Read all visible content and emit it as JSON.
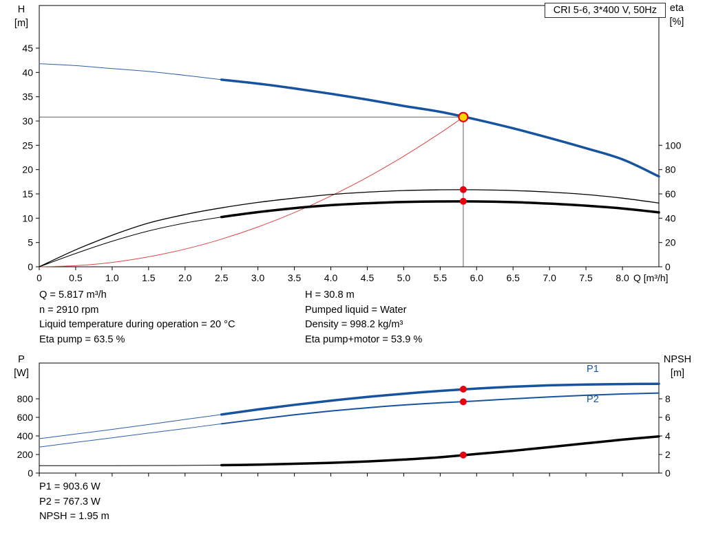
{
  "title_box": "CRI 5-6, 3*400 V, 50Hz",
  "info_top": {
    "left": [
      "Q = 5.817 m³/h",
      "n = 2910 rpm",
      "Liquid temperature during operation = 20 °C",
      "Eta pump = 63.5 %"
    ],
    "right": [
      "H = 30.8 m",
      "Pumped liquid = Water",
      "Density = 998.2 kg/m³",
      "Eta pump+motor = 53.9 %"
    ]
  },
  "info_bottom": [
    "P1 = 903.6 W",
    "P2 = 767.3 W",
    "NPSH = 1.95 m"
  ],
  "chart_data": [
    {
      "type": "line",
      "title": "CRI 5-6, 3*400 V, 50Hz",
      "x_axis": {
        "label": "Q [m³/h]",
        "min": 0,
        "max": 8.5,
        "show_labels": true,
        "ticks": [
          [
            0,
            "0"
          ],
          [
            0.5,
            "0.5"
          ],
          [
            1,
            "1.0"
          ],
          [
            1.5,
            "1.5"
          ],
          [
            2,
            "2.0"
          ],
          [
            2.5,
            "2.5"
          ],
          [
            3,
            "3.0"
          ],
          [
            3.5,
            "3.5"
          ],
          [
            4,
            "4.0"
          ],
          [
            4.5,
            "4.5"
          ],
          [
            5,
            "5.0"
          ],
          [
            5.5,
            "5.5"
          ],
          [
            6,
            "6.0"
          ],
          [
            6.5,
            "6.5"
          ],
          [
            7,
            "7.0"
          ],
          [
            7.5,
            "7.5"
          ],
          [
            8,
            "8.0"
          ]
        ]
      },
      "y_left": {
        "label": [
          "H",
          "[m]"
        ],
        "min": 0,
        "max": 53.77,
        "ticks": [
          [
            0,
            "0"
          ],
          [
            5,
            "5"
          ],
          [
            10,
            "10"
          ],
          [
            15,
            "15"
          ],
          [
            20,
            "20"
          ],
          [
            25,
            "25"
          ],
          [
            30,
            "30"
          ],
          [
            35,
            "35"
          ],
          [
            40,
            "40"
          ],
          [
            45,
            "45"
          ]
        ]
      },
      "y_right": {
        "label": [
          "eta",
          "[%]"
        ],
        "min": 0,
        "max": 215.1,
        "ticks": [
          [
            0,
            "0"
          ],
          [
            20,
            "20"
          ],
          [
            40,
            "40"
          ],
          [
            60,
            "60"
          ],
          [
            80,
            "80"
          ],
          [
            100,
            "100"
          ]
        ]
      },
      "series": [
        {
          "name": "head-curve-extension",
          "axis": "left",
          "color": "#2b5ea7",
          "width": 1,
          "points": [
            [
              0,
              41.8
            ],
            [
              0.5,
              41.4
            ],
            [
              1,
              40.8
            ],
            [
              1.5,
              40.2
            ],
            [
              2,
              39.4
            ],
            [
              2.5,
              38.5
            ]
          ]
        },
        {
          "name": "head-curve",
          "axis": "left",
          "color": "#17539e",
          "width": 3.5,
          "points": [
            [
              2.5,
              38.5
            ],
            [
              3,
              37.7
            ],
            [
              3.5,
              36.7
            ],
            [
              4,
              35.6
            ],
            [
              4.5,
              34.4
            ],
            [
              5,
              33.1
            ],
            [
              5.5,
              31.9
            ],
            [
              6,
              30.3
            ],
            [
              6.5,
              28.5
            ],
            [
              7,
              26.5
            ],
            [
              7.5,
              24.4
            ],
            [
              8,
              22.1
            ],
            [
              8.5,
              18.6
            ]
          ]
        },
        {
          "name": "system-curve",
          "axis": "left",
          "color": "#e04545",
          "width": 1,
          "points": [
            [
              0,
              0
            ],
            [
              0.5,
              0.23
            ],
            [
              1,
              0.91
            ],
            [
              1.5,
              2.05
            ],
            [
              2,
              3.64
            ],
            [
              2.5,
              5.69
            ],
            [
              3,
              8.19
            ],
            [
              3.5,
              11.15
            ],
            [
              4,
              14.56
            ],
            [
              4.5,
              18.43
            ],
            [
              5,
              22.76
            ],
            [
              5.5,
              27.53
            ],
            [
              5.817,
              30.8
            ]
          ]
        },
        {
          "name": "eta-pump-curve",
          "axis": "right",
          "color": "#000000",
          "width": 1.3,
          "points": [
            [
              0,
              0
            ],
            [
              0.5,
              14
            ],
            [
              1,
              26
            ],
            [
              1.5,
              36
            ],
            [
              2,
              43
            ],
            [
              2.5,
              48.5
            ],
            [
              3,
              53
            ],
            [
              3.5,
              56.5
            ],
            [
              4,
              59.5
            ],
            [
              4.5,
              61.5
            ],
            [
              5,
              62.8
            ],
            [
              5.5,
              63.4
            ],
            [
              6,
              63.4
            ],
            [
              6.5,
              62.8
            ],
            [
              7,
              61.5
            ],
            [
              7.5,
              59.5
            ],
            [
              8,
              56.5
            ],
            [
              8.5,
              52.5
            ]
          ]
        },
        {
          "name": "eta-pump-motor-extension",
          "axis": "right",
          "color": "#000000",
          "width": 1,
          "points": [
            [
              0,
              0
            ],
            [
              0.5,
              11
            ],
            [
              1,
              21
            ],
            [
              1.5,
              29.5
            ],
            [
              2,
              36
            ],
            [
              2.5,
              41
            ]
          ]
        },
        {
          "name": "eta-pump-motor-curve",
          "axis": "right",
          "color": "#000000",
          "width": 3.5,
          "points": [
            [
              2.5,
              41
            ],
            [
              3,
              45
            ],
            [
              3.5,
              48.3
            ],
            [
              4,
              50.7
            ],
            [
              4.5,
              52.3
            ],
            [
              5,
              53.4
            ],
            [
              5.5,
              53.8
            ],
            [
              6,
              53.8
            ],
            [
              6.5,
              53.2
            ],
            [
              7,
              52
            ],
            [
              7.5,
              50.3
            ],
            [
              8,
              48
            ],
            [
              8.5,
              44.8
            ]
          ]
        }
      ],
      "crosshair": {
        "q": 5.817,
        "h": 30.8,
        "color": "#5f5f5f"
      },
      "markers": [
        {
          "name": "duty-point",
          "axis": "left",
          "q": 5.817,
          "v": 30.8,
          "r": 6.5,
          "fill": "#ffd400",
          "stroke": "#e8000d",
          "stroke_width": 2.2
        },
        {
          "name": "eta-pump-point",
          "axis": "right",
          "q": 5.817,
          "v": 63.5,
          "r": 5,
          "fill": "#e8000d"
        },
        {
          "name": "eta-pump-motor-point",
          "axis": "right",
          "q": 5.817,
          "v": 53.9,
          "r": 5,
          "fill": "#e8000d"
        }
      ]
    },
    {
      "type": "line",
      "x_axis": {
        "label": "",
        "min": 0,
        "max": 8.5,
        "show_labels": false,
        "ticks": [
          [
            0,
            ""
          ],
          [
            0.5,
            ""
          ],
          [
            1,
            ""
          ],
          [
            1.5,
            ""
          ],
          [
            2,
            ""
          ],
          [
            2.5,
            ""
          ],
          [
            3,
            ""
          ],
          [
            3.5,
            ""
          ],
          [
            4,
            ""
          ],
          [
            4.5,
            ""
          ],
          [
            5,
            ""
          ],
          [
            5.5,
            ""
          ],
          [
            6,
            ""
          ],
          [
            6.5,
            ""
          ],
          [
            7,
            ""
          ],
          [
            7.5,
            ""
          ],
          [
            8,
            ""
          ]
        ]
      },
      "y_left": {
        "label": [
          "P",
          "[W]"
        ],
        "min": 0,
        "max": 1185,
        "ticks": [
          [
            0,
            "0"
          ],
          [
            200,
            "200"
          ],
          [
            400,
            "400"
          ],
          [
            600,
            "600"
          ],
          [
            800,
            "800"
          ]
        ]
      },
      "y_right": {
        "label": [
          "NPSH",
          "[m]"
        ],
        "min": 0,
        "max": 11.85,
        "ticks": [
          [
            0,
            "0"
          ],
          [
            2,
            "2"
          ],
          [
            4,
            "4"
          ],
          [
            6,
            "6"
          ],
          [
            8,
            "8"
          ]
        ]
      },
      "labels": {
        "p1": "P1",
        "p2": "P2"
      },
      "series": [
        {
          "name": "p1-extension",
          "axis": "left",
          "color": "#2b5ea7",
          "width": 1,
          "points": [
            [
              0,
              370
            ],
            [
              0.5,
              420
            ],
            [
              1,
              470
            ],
            [
              1.5,
              523
            ],
            [
              2,
              578
            ],
            [
              2.5,
              630
            ]
          ]
        },
        {
          "name": "p1-curve",
          "axis": "left",
          "color": "#17539e",
          "width": 3.5,
          "points": [
            [
              2.5,
              630
            ],
            [
              3,
              685
            ],
            [
              3.5,
              735
            ],
            [
              4,
              780
            ],
            [
              4.5,
              820
            ],
            [
              5,
              855
            ],
            [
              5.5,
              885
            ],
            [
              6,
              910
            ],
            [
              6.5,
              930
            ],
            [
              7,
              945
            ],
            [
              7.5,
              953
            ],
            [
              8,
              958
            ],
            [
              8.5,
              961
            ]
          ]
        },
        {
          "name": "p2-extension",
          "axis": "left",
          "color": "#2b5ea7",
          "width": 1,
          "points": [
            [
              0,
              280
            ],
            [
              0.5,
              330
            ],
            [
              1,
              380
            ],
            [
              1.5,
              430
            ],
            [
              2,
              480
            ],
            [
              2.5,
              530
            ]
          ]
        },
        {
          "name": "p2-curve",
          "axis": "left",
          "color": "#17539e",
          "width": 2,
          "points": [
            [
              2.5,
              530
            ],
            [
              3,
              580
            ],
            [
              3.5,
              627
            ],
            [
              4,
              668
            ],
            [
              4.5,
              703
            ],
            [
              5,
              733
            ],
            [
              5.5,
              757
            ],
            [
              6,
              777
            ],
            [
              6.5,
              800
            ],
            [
              7,
              820
            ],
            [
              7.5,
              838
            ],
            [
              8,
              852
            ],
            [
              8.5,
              862
            ]
          ]
        },
        {
          "name": "npsh-extension",
          "axis": "right",
          "color": "#000000",
          "width": 1,
          "points": [
            [
              0,
              0.8
            ],
            [
              1,
              0.8
            ],
            [
              2,
              0.82
            ],
            [
              2.5,
              0.85
            ]
          ]
        },
        {
          "name": "npsh-curve",
          "axis": "right",
          "color": "#000000",
          "width": 3.5,
          "points": [
            [
              2.5,
              0.85
            ],
            [
              3,
              0.9
            ],
            [
              3.5,
              1.0
            ],
            [
              4,
              1.1
            ],
            [
              4.5,
              1.25
            ],
            [
              5,
              1.45
            ],
            [
              5.5,
              1.7
            ],
            [
              6,
              2.05
            ],
            [
              6.5,
              2.4
            ],
            [
              7,
              2.8
            ],
            [
              7.5,
              3.2
            ],
            [
              8,
              3.6
            ],
            [
              8.5,
              3.95
            ]
          ]
        }
      ],
      "markers": [
        {
          "name": "p1-point",
          "axis": "left",
          "q": 5.817,
          "v": 903.6,
          "r": 5,
          "fill": "#e8000d"
        },
        {
          "name": "p2-point",
          "axis": "left",
          "q": 5.817,
          "v": 767.3,
          "r": 5,
          "fill": "#e8000d"
        },
        {
          "name": "npsh-point",
          "axis": "right",
          "q": 5.817,
          "v": 1.95,
          "r": 5,
          "fill": "#e8000d"
        }
      ]
    }
  ]
}
